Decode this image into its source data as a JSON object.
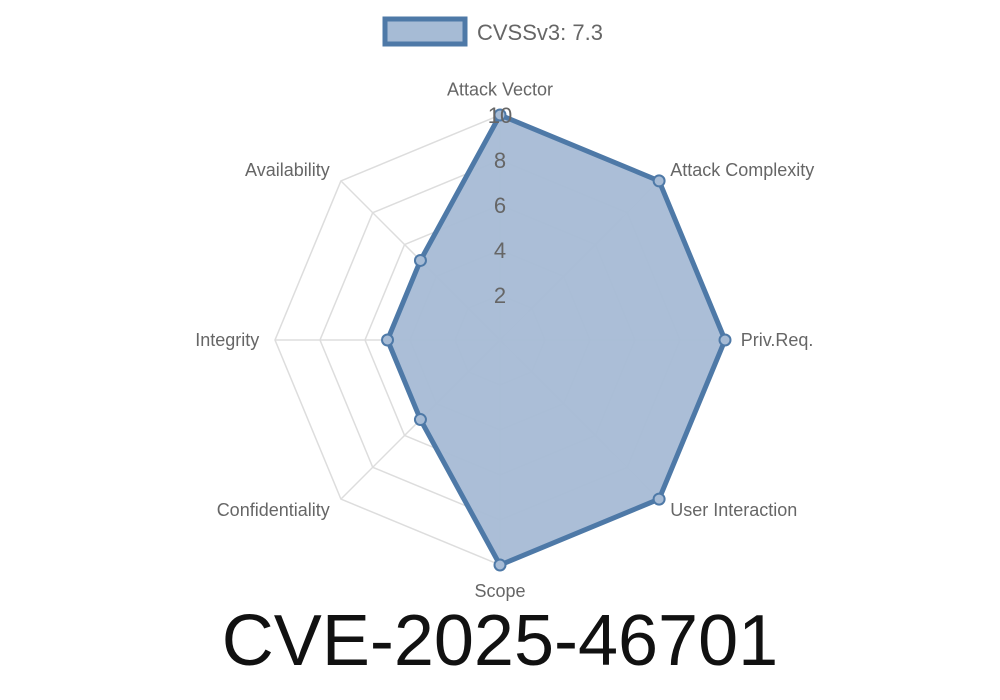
{
  "chart_data": {
    "type": "radar",
    "categories": [
      "Attack Vector",
      "Attack Complexity",
      "Priv.Req.",
      "User Interaction",
      "Scope",
      "Confidentiality",
      "Integrity",
      "Availability"
    ],
    "series": [
      {
        "name": "CVSSv3: 7.3",
        "values": [
          10,
          10,
          10,
          10,
          10,
          5,
          5,
          5
        ]
      }
    ],
    "rlim": [
      0,
      10
    ],
    "ticks": [
      "2",
      "4",
      "6",
      "8",
      "10"
    ],
    "legend": "top",
    "grid": true,
    "colors": {
      "line": "#4e79a7",
      "fill": "#a6bbd5",
      "grid": "#dddddd"
    }
  },
  "title": "CVE-2025-46701"
}
